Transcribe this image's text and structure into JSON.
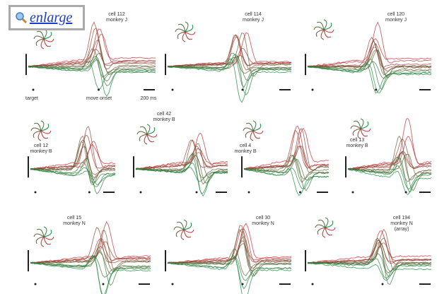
{
  "enlarge": "enlarge",
  "panels": [
    {
      "cell": "cell 112",
      "monkey": "monkey J"
    },
    {
      "cell": "cell 114",
      "monkey": "monkey J"
    },
    {
      "cell": "cell 120",
      "monkey": "monkey J"
    },
    {
      "cell": "cell 12",
      "monkey": "monkey B"
    },
    {
      "cell": "cell 42",
      "monkey": "monkey B"
    },
    {
      "cell": "cell 4",
      "monkey": "monkey B"
    },
    {
      "cell": "cell 13",
      "monkey": "monkey B"
    },
    {
      "cell": "cell 15",
      "monkey": "monkey N"
    },
    {
      "cell": "cell 30",
      "monkey": "monkey N"
    },
    {
      "cell": "cell 194",
      "monkey": "monkey N",
      "note": "(array)"
    }
  ],
  "annotations": {
    "target": "target",
    "move_onset": "move onset",
    "scale": "200 ms"
  }
}
